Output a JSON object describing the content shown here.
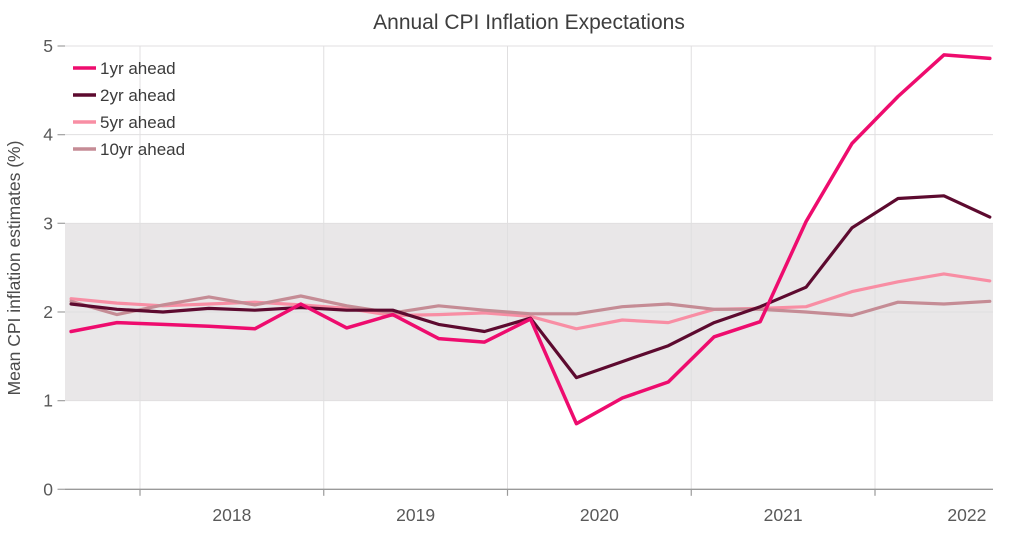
{
  "chart": {
    "title": "Annual CPI Inflation Expectations",
    "ylabel": "Mean CPI inflation estimates (%)"
  },
  "chart_data": {
    "type": "line",
    "title": "Annual CPI Inflation Expectations",
    "xlabel": "",
    "ylabel": "Mean CPI inflation estimates (%)",
    "ylim": [
      0,
      5
    ],
    "xlim": [
      2017.59,
      2022.64
    ],
    "grid": true,
    "legend_position": "top-left",
    "y_ticks": [
      0,
      1,
      2,
      3,
      4,
      5
    ],
    "x_tick_years": [
      "2018",
      "2019",
      "2020",
      "2021",
      "2022"
    ],
    "shaded_band": {
      "from": 1,
      "to": 3,
      "color": "#e9e7e8"
    },
    "x": [
      2017.625,
      2017.875,
      2018.125,
      2018.375,
      2018.625,
      2018.875,
      2019.125,
      2019.375,
      2019.625,
      2019.875,
      2020.125,
      2020.375,
      2020.625,
      2020.875,
      2021.125,
      2021.375,
      2021.625,
      2021.875,
      2022.125,
      2022.375,
      2022.625
    ],
    "series": [
      {
        "name": "1yr ahead",
        "color": "#ee0c6e",
        "values": [
          1.78,
          1.88,
          1.86,
          1.84,
          1.81,
          2.09,
          1.82,
          1.97,
          1.7,
          1.66,
          1.92,
          0.74,
          1.03,
          1.21,
          1.72,
          1.89,
          3.02,
          3.9,
          4.43,
          4.9,
          4.86
        ]
      },
      {
        "name": "2yr ahead",
        "color": "#5d0a2f",
        "values": [
          2.09,
          2.03,
          2.0,
          2.04,
          2.02,
          2.05,
          2.02,
          2.02,
          1.86,
          1.78,
          1.93,
          1.26,
          1.44,
          1.62,
          1.88,
          2.06,
          2.28,
          2.95,
          3.28,
          3.31,
          3.07
        ]
      },
      {
        "name": "5yr ahead",
        "color": "#f88ea4",
        "values": [
          2.15,
          2.1,
          2.07,
          2.09,
          2.11,
          2.08,
          2.04,
          1.96,
          1.97,
          1.99,
          1.95,
          1.81,
          1.91,
          1.88,
          2.03,
          2.04,
          2.06,
          2.23,
          2.34,
          2.43,
          2.35
        ]
      },
      {
        "name": "10yr ahead",
        "color": "#c58c95",
        "values": [
          2.12,
          1.97,
          2.08,
          2.17,
          2.08,
          2.18,
          2.07,
          1.99,
          2.07,
          2.02,
          1.98,
          1.98,
          2.06,
          2.09,
          2.03,
          2.03,
          2.0,
          1.96,
          2.11,
          2.09,
          2.12
        ]
      }
    ]
  },
  "colors": {
    "background": "#ffffff",
    "band": "#e9e7e8",
    "gridline": "#e0dfe0",
    "axis": "#9a9a9a",
    "tick": "#a8a8a8",
    "title_text": "#3d3d3d",
    "tick_text": "#595959"
  }
}
